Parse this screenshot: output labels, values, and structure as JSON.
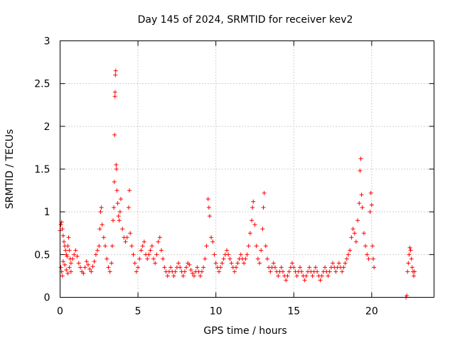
{
  "chart_data": {
    "type": "scatter",
    "title": "Day 145 of 2024, SRMTID for receiver kev2",
    "xlabel": "GPS time / hours",
    "ylabel": "SRMTID / TECUs",
    "xlim": [
      0,
      24
    ],
    "ylim": [
      0,
      3
    ],
    "xticks": [
      0,
      5,
      10,
      15,
      20
    ],
    "yticks": [
      0,
      0.5,
      1,
      1.5,
      2,
      2.5,
      3
    ],
    "xtick_labels": [
      "0",
      "5",
      "10",
      "15",
      "20"
    ],
    "ytick_labels": [
      "0",
      "0.5",
      "1",
      "1.5",
      "2",
      "2.5",
      "3"
    ],
    "grid": true,
    "marker": "+",
    "color": "#ff0000",
    "series": [
      {
        "name": "kev2",
        "points": [
          [
            0.0,
            0.78
          ],
          [
            0.05,
            0.85
          ],
          [
            0.1,
            0.88
          ],
          [
            0.15,
            0.8
          ],
          [
            0.2,
            0.72
          ],
          [
            0.25,
            0.65
          ],
          [
            0.3,
            0.6
          ],
          [
            0.35,
            0.55
          ],
          [
            0.4,
            0.5
          ],
          [
            0.45,
            0.48
          ],
          [
            0.5,
            0.6
          ],
          [
            0.55,
            0.7
          ],
          [
            0.6,
            0.55
          ],
          [
            0.65,
            0.45
          ],
          [
            0.7,
            0.4
          ],
          [
            0.05,
            0.35
          ],
          [
            0.1,
            0.3
          ],
          [
            0.15,
            0.25
          ],
          [
            0.2,
            0.42
          ],
          [
            0.3,
            0.38
          ],
          [
            0.4,
            0.32
          ],
          [
            0.5,
            0.28
          ],
          [
            0.6,
            0.35
          ],
          [
            0.7,
            0.3
          ],
          [
            0.8,
            0.45
          ],
          [
            0.9,
            0.5
          ],
          [
            1.0,
            0.55
          ],
          [
            1.1,
            0.48
          ],
          [
            1.2,
            0.4
          ],
          [
            1.3,
            0.35
          ],
          [
            1.4,
            0.3
          ],
          [
            1.5,
            0.28
          ],
          [
            1.6,
            0.35
          ],
          [
            1.7,
            0.42
          ],
          [
            1.8,
            0.38
          ],
          [
            1.9,
            0.33
          ],
          [
            2.0,
            0.3
          ],
          [
            2.1,
            0.36
          ],
          [
            2.2,
            0.42
          ],
          [
            2.3,
            0.5
          ],
          [
            2.4,
            0.55
          ],
          [
            2.5,
            0.6
          ],
          [
            2.55,
            0.8
          ],
          [
            2.6,
            1.0
          ],
          [
            2.65,
            1.05
          ],
          [
            2.7,
            0.85
          ],
          [
            2.8,
            0.7
          ],
          [
            2.9,
            0.6
          ],
          [
            3.0,
            0.45
          ],
          [
            3.1,
            0.35
          ],
          [
            3.2,
            0.3
          ],
          [
            3.3,
            0.4
          ],
          [
            3.35,
            0.6
          ],
          [
            3.4,
            0.9
          ],
          [
            3.45,
            1.05
          ],
          [
            3.48,
            1.35
          ],
          [
            3.5,
            1.9
          ],
          [
            3.52,
            2.35
          ],
          [
            3.53,
            2.4
          ],
          [
            3.55,
            2.6
          ],
          [
            3.57,
            2.65
          ],
          [
            3.6,
            1.55
          ],
          [
            3.62,
            1.5
          ],
          [
            3.65,
            1.25
          ],
          [
            3.7,
            1.1
          ],
          [
            3.75,
            0.95
          ],
          [
            3.8,
            0.9
          ],
          [
            3.85,
            1.0
          ],
          [
            3.9,
            1.15
          ],
          [
            4.0,
            0.8
          ],
          [
            4.1,
            0.7
          ],
          [
            4.2,
            0.65
          ],
          [
            4.3,
            0.7
          ],
          [
            4.4,
            1.05
          ],
          [
            4.45,
            1.25
          ],
          [
            4.5,
            0.75
          ],
          [
            4.6,
            0.6
          ],
          [
            4.7,
            0.5
          ],
          [
            4.8,
            0.4
          ],
          [
            4.9,
            0.3
          ],
          [
            5.0,
            0.35
          ],
          [
            5.1,
            0.45
          ],
          [
            5.2,
            0.55
          ],
          [
            5.3,
            0.6
          ],
          [
            5.4,
            0.65
          ],
          [
            5.5,
            0.5
          ],
          [
            5.6,
            0.45
          ],
          [
            5.7,
            0.5
          ],
          [
            5.8,
            0.55
          ],
          [
            5.9,
            0.6
          ],
          [
            6.0,
            0.45
          ],
          [
            6.1,
            0.4
          ],
          [
            6.2,
            0.5
          ],
          [
            6.3,
            0.65
          ],
          [
            6.4,
            0.7
          ],
          [
            6.5,
            0.55
          ],
          [
            6.6,
            0.45
          ],
          [
            6.7,
            0.35
          ],
          [
            6.8,
            0.3
          ],
          [
            6.9,
            0.25
          ],
          [
            7.0,
            0.3
          ],
          [
            7.1,
            0.35
          ],
          [
            7.2,
            0.3
          ],
          [
            7.3,
            0.25
          ],
          [
            7.4,
            0.3
          ],
          [
            7.5,
            0.35
          ],
          [
            7.6,
            0.4
          ],
          [
            7.7,
            0.35
          ],
          [
            7.8,
            0.3
          ],
          [
            7.9,
            0.25
          ],
          [
            8.0,
            0.3
          ],
          [
            8.1,
            0.35
          ],
          [
            8.2,
            0.4
          ],
          [
            8.3,
            0.38
          ],
          [
            8.4,
            0.32
          ],
          [
            8.5,
            0.28
          ],
          [
            8.6,
            0.25
          ],
          [
            8.7,
            0.3
          ],
          [
            8.8,
            0.35
          ],
          [
            8.9,
            0.3
          ],
          [
            9.0,
            0.25
          ],
          [
            9.1,
            0.3
          ],
          [
            9.2,
            0.35
          ],
          [
            9.3,
            0.45
          ],
          [
            9.4,
            0.6
          ],
          [
            9.5,
            1.15
          ],
          [
            9.55,
            1.05
          ],
          [
            9.6,
            0.95
          ],
          [
            9.7,
            0.7
          ],
          [
            9.8,
            0.65
          ],
          [
            9.9,
            0.5
          ],
          [
            10.0,
            0.4
          ],
          [
            10.1,
            0.35
          ],
          [
            10.2,
            0.3
          ],
          [
            10.3,
            0.35
          ],
          [
            10.4,
            0.4
          ],
          [
            10.5,
            0.45
          ],
          [
            10.6,
            0.5
          ],
          [
            10.7,
            0.55
          ],
          [
            10.8,
            0.5
          ],
          [
            10.9,
            0.45
          ],
          [
            11.0,
            0.4
          ],
          [
            11.1,
            0.35
          ],
          [
            11.2,
            0.3
          ],
          [
            11.3,
            0.35
          ],
          [
            11.4,
            0.4
          ],
          [
            11.5,
            0.45
          ],
          [
            11.6,
            0.5
          ],
          [
            11.7,
            0.45
          ],
          [
            11.8,
            0.4
          ],
          [
            11.9,
            0.45
          ],
          [
            12.0,
            0.5
          ],
          [
            12.1,
            0.6
          ],
          [
            12.2,
            0.75
          ],
          [
            12.3,
            0.9
          ],
          [
            12.35,
            1.05
          ],
          [
            12.4,
            1.12
          ],
          [
            12.5,
            0.85
          ],
          [
            12.6,
            0.6
          ],
          [
            12.7,
            0.45
          ],
          [
            12.8,
            0.4
          ],
          [
            12.9,
            0.55
          ],
          [
            13.0,
            0.8
          ],
          [
            13.05,
            1.05
          ],
          [
            13.1,
            1.22
          ],
          [
            13.2,
            0.6
          ],
          [
            13.3,
            0.45
          ],
          [
            13.4,
            0.35
          ],
          [
            13.5,
            0.3
          ],
          [
            13.6,
            0.35
          ],
          [
            13.7,
            0.4
          ],
          [
            13.8,
            0.35
          ],
          [
            13.9,
            0.3
          ],
          [
            14.0,
            0.25
          ],
          [
            14.1,
            0.3
          ],
          [
            14.2,
            0.35
          ],
          [
            14.3,
            0.3
          ],
          [
            14.4,
            0.25
          ],
          [
            14.5,
            0.2
          ],
          [
            14.6,
            0.25
          ],
          [
            14.7,
            0.3
          ],
          [
            14.8,
            0.35
          ],
          [
            14.9,
            0.4
          ],
          [
            15.0,
            0.35
          ],
          [
            15.1,
            0.3
          ],
          [
            15.2,
            0.25
          ],
          [
            15.3,
            0.3
          ],
          [
            15.4,
            0.35
          ],
          [
            15.5,
            0.3
          ],
          [
            15.6,
            0.25
          ],
          [
            15.7,
            0.2
          ],
          [
            15.8,
            0.25
          ],
          [
            15.9,
            0.3
          ],
          [
            16.0,
            0.35
          ],
          [
            16.1,
            0.3
          ],
          [
            16.2,
            0.25
          ],
          [
            16.3,
            0.3
          ],
          [
            16.4,
            0.35
          ],
          [
            16.5,
            0.3
          ],
          [
            16.6,
            0.25
          ],
          [
            16.7,
            0.2
          ],
          [
            16.8,
            0.25
          ],
          [
            16.9,
            0.3
          ],
          [
            17.0,
            0.35
          ],
          [
            17.1,
            0.3
          ],
          [
            17.2,
            0.25
          ],
          [
            17.3,
            0.3
          ],
          [
            17.4,
            0.35
          ],
          [
            17.5,
            0.4
          ],
          [
            17.6,
            0.35
          ],
          [
            17.7,
            0.3
          ],
          [
            17.8,
            0.35
          ],
          [
            17.9,
            0.4
          ],
          [
            18.0,
            0.35
          ],
          [
            18.1,
            0.3
          ],
          [
            18.2,
            0.35
          ],
          [
            18.3,
            0.4
          ],
          [
            18.4,
            0.45
          ],
          [
            18.5,
            0.5
          ],
          [
            18.6,
            0.55
          ],
          [
            18.7,
            0.7
          ],
          [
            18.8,
            0.8
          ],
          [
            18.9,
            0.75
          ],
          [
            19.0,
            0.65
          ],
          [
            19.1,
            0.9
          ],
          [
            19.2,
            1.1
          ],
          [
            19.25,
            1.48
          ],
          [
            19.3,
            1.62
          ],
          [
            19.35,
            1.2
          ],
          [
            19.4,
            1.05
          ],
          [
            19.5,
            0.75
          ],
          [
            19.6,
            0.6
          ],
          [
            19.7,
            0.5
          ],
          [
            19.8,
            0.45
          ],
          [
            19.9,
            1.0
          ],
          [
            19.95,
            1.22
          ],
          [
            20.0,
            1.08
          ],
          [
            20.05,
            0.6
          ],
          [
            20.1,
            0.45
          ],
          [
            20.15,
            0.35
          ],
          [
            22.2,
            0.0
          ],
          [
            22.25,
            0.02
          ],
          [
            22.3,
            0.3
          ],
          [
            22.35,
            0.4
          ],
          [
            22.4,
            0.5
          ],
          [
            22.45,
            0.58
          ],
          [
            22.5,
            0.55
          ],
          [
            22.55,
            0.45
          ],
          [
            22.6,
            0.35
          ],
          [
            22.65,
            0.3
          ],
          [
            22.7,
            0.25
          ],
          [
            22.75,
            0.3
          ]
        ]
      }
    ]
  }
}
